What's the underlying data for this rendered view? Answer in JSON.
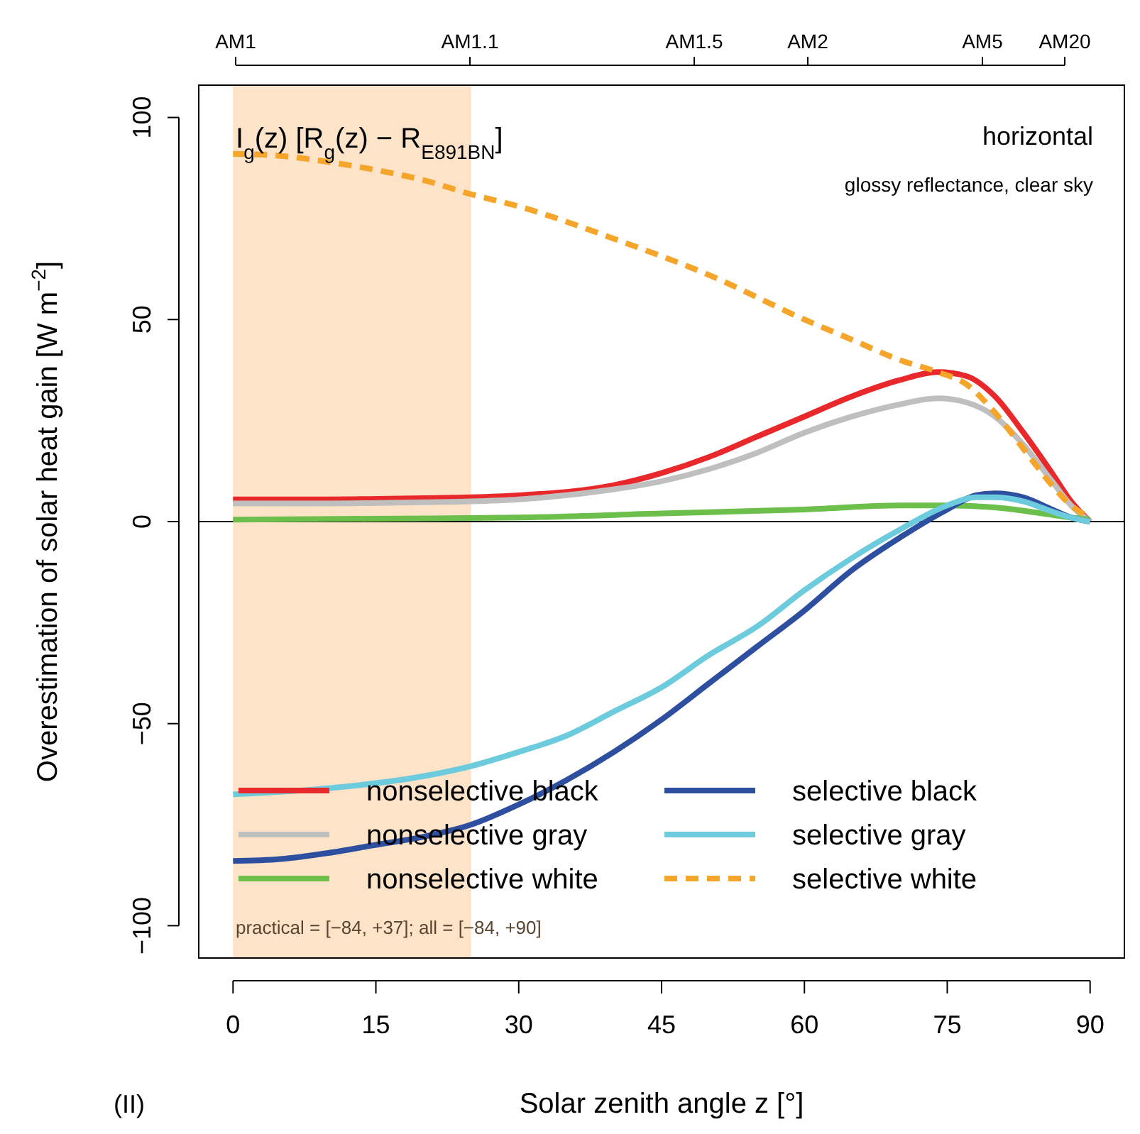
{
  "chart_data": {
    "type": "line",
    "xlabel": "Solar zenith angle z [°]",
    "ylabel": "Overestimation of solar heat gain [W m$^{−2}$]",
    "xlim": [
      -3.6,
      93.6
    ],
    "ylim": [
      -108,
      108
    ],
    "xticks": [
      0,
      15,
      30,
      45,
      60,
      75,
      90
    ],
    "yticks": [
      {
        "value": -100,
        "label": "−100"
      },
      {
        "value": -50,
        "label": "−50"
      },
      0,
      50,
      100
    ],
    "grid": false,
    "legend": "bottom",
    "line_style": "solid",
    "marker": "none",
    "bands": [
      {
        "axis": "x",
        "from": 0,
        "to": 25,
        "color": "#fde3c8"
      }
    ],
    "ref_lines": [
      {
        "axis": "y",
        "value": 0,
        "color": "#000000"
      }
    ],
    "annotations": [
      "AM1",
      "AM1.1",
      "AM1.5",
      "AM2",
      "AM5",
      "AM20",
      "I$_{g}$(z) [R$_{g}$(z) − R$_{E891BN}$]",
      "horizontal",
      "glossy reflectance, clear sky",
      "practical = [−84, +37]; all = [−84, +90]",
      "(II)"
    ],
    "series": [
      {
        "name": "nonselective black",
        "color": "#e8282a",
        "x": [
          0,
          10,
          20,
          25,
          30,
          40,
          45,
          50,
          55,
          60,
          65,
          70,
          74,
          77,
          80,
          83,
          86,
          88,
          90
        ],
        "values": [
          5.5,
          5.5,
          5.8,
          6,
          6.5,
          9,
          12,
          16,
          21,
          26,
          31,
          35,
          37,
          36,
          31,
          22,
          12,
          5,
          0
        ]
      },
      {
        "name": "nonselective gray",
        "color": "#bfbfbf",
        "x": [
          0,
          10,
          20,
          25,
          30,
          40,
          45,
          50,
          55,
          60,
          65,
          70,
          74,
          77,
          80,
          83,
          86,
          88,
          90
        ],
        "values": [
          4.5,
          4.5,
          4.8,
          5,
          5.5,
          8,
          10,
          13,
          17,
          22,
          26,
          29,
          30.5,
          29.5,
          26,
          19,
          10,
          4,
          0
        ]
      },
      {
        "name": "nonselective white",
        "color": "#6cbf4a",
        "x": [
          0,
          15,
          30,
          45,
          60,
          70,
          75,
          80,
          85,
          88,
          90
        ],
        "values": [
          0.5,
          0.7,
          1,
          2,
          3,
          4,
          4,
          3.5,
          2,
          1,
          0.5
        ]
      },
      {
        "name": "selective black",
        "color": "#2e4fa0",
        "x": [
          0,
          5,
          10,
          15,
          20,
          25,
          30,
          35,
          40,
          45,
          50,
          55,
          60,
          65,
          70,
          75,
          78,
          80,
          83,
          86,
          88,
          90
        ],
        "values": [
          -84,
          -83.5,
          -82,
          -80,
          -78,
          -75,
          -70,
          -64,
          -57,
          -49,
          -40,
          -31,
          -22,
          -12,
          -4,
          3,
          6.5,
          7,
          6,
          3,
          1,
          0
        ]
      },
      {
        "name": "selective gray",
        "color": "#6ccbdc",
        "x": [
          0,
          10,
          20,
          25,
          30,
          35,
          40,
          45,
          50,
          55,
          60,
          65,
          70,
          75,
          78,
          80,
          83,
          86,
          88,
          90
        ],
        "values": [
          -67.5,
          -66,
          -63,
          -60.5,
          -57,
          -53,
          -47,
          -41,
          -33,
          -26,
          -17,
          -9,
          -2,
          4,
          6,
          6,
          5,
          2.5,
          1,
          0
        ]
      },
      {
        "name": "selective white",
        "color": "#f5a52a",
        "line_style": "dashed",
        "x": [
          0,
          5,
          10,
          15,
          20,
          25,
          30,
          40,
          50,
          60,
          65,
          70,
          74,
          77,
          80,
          83,
          86,
          88,
          90
        ],
        "values": [
          91,
          90.5,
          89,
          87,
          84.5,
          81,
          78,
          70,
          61,
          50,
          45,
          40,
          37,
          34,
          27,
          18,
          9,
          4,
          1
        ]
      }
    ]
  }
}
